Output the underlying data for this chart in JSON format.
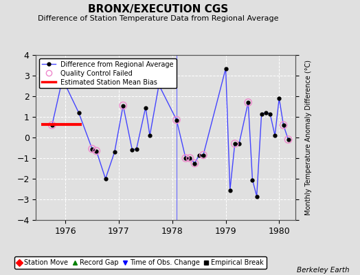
{
  "title": "BRONX/EXECUTION CGS",
  "subtitle": "Difference of Station Temperature Data from Regional Average",
  "ylabel_right": "Monthly Temperature Anomaly Difference (°C)",
  "xlabel_bottom": "Berkeley Earth",
  "xlim": [
    1975.45,
    1980.3
  ],
  "ylim": [
    -4,
    4
  ],
  "yticks": [
    -4,
    -3,
    -2,
    -1,
    0,
    1,
    2,
    3,
    4
  ],
  "xticks": [
    1976,
    1977,
    1978,
    1979,
    1980
  ],
  "background_color": "#e0e0e0",
  "plot_bg_color": "#e0e0e0",
  "line_color": "#4444ff",
  "line_data_x": [
    1975.75,
    1975.92,
    1976.0,
    1976.25,
    1976.5,
    1976.58,
    1976.75,
    1976.92,
    1977.08,
    1977.25,
    1977.33,
    1977.5,
    1977.58,
    1977.75,
    1978.08,
    1978.25,
    1978.33,
    1978.42,
    1978.5,
    1978.58,
    1979.0,
    1979.08,
    1979.17,
    1979.25,
    1979.42,
    1979.5,
    1979.58,
    1979.67,
    1979.75,
    1979.83,
    1979.92,
    1980.0,
    1980.08,
    1980.17
  ],
  "line_data_y": [
    0.6,
    2.55,
    2.55,
    1.2,
    -0.55,
    -0.65,
    -2.0,
    -0.7,
    1.55,
    -0.6,
    -0.55,
    1.45,
    0.1,
    2.55,
    0.85,
    -1.0,
    -1.0,
    -1.25,
    -0.85,
    -0.85,
    3.35,
    -2.55,
    -0.3,
    -0.3,
    1.7,
    -2.05,
    -2.85,
    1.15,
    1.2,
    1.15,
    0.1,
    1.9,
    0.6,
    -0.1
  ],
  "qc_failed_x": [
    1975.75,
    1976.5,
    1976.58,
    1977.08,
    1977.75,
    1978.08,
    1978.25,
    1978.33,
    1978.42,
    1978.58,
    1979.17,
    1979.42,
    1980.08,
    1980.17
  ],
  "qc_failed_y": [
    0.6,
    -0.55,
    -0.65,
    1.55,
    2.55,
    0.85,
    -1.0,
    -1.0,
    -1.25,
    -0.85,
    -0.3,
    1.7,
    0.6,
    -0.1
  ],
  "bias_line_x": [
    1975.55,
    1976.3
  ],
  "bias_line_y": [
    0.65,
    0.65
  ],
  "obs_change_x": [
    1978.08
  ],
  "legend1_items": [
    "Difference from Regional Average",
    "Quality Control Failed",
    "Estimated Station Mean Bias"
  ],
  "bottom_legend": [
    "Station Move",
    "Record Gap",
    "Time of Obs. Change",
    "Empirical Break"
  ],
  "bottom_legend_colors": [
    "red",
    "green",
    "blue",
    "black"
  ],
  "bottom_legend_markers": [
    "D",
    "^",
    "v",
    "s"
  ]
}
